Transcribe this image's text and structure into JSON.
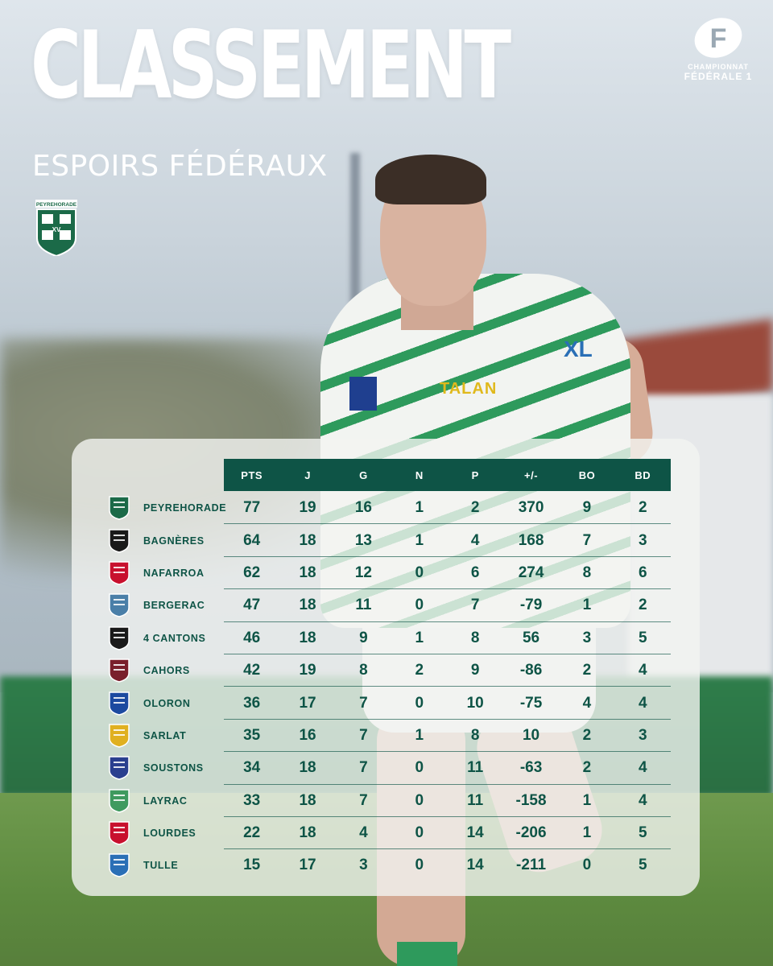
{
  "header": {
    "title": "CLASSEMENT",
    "subtitle": "ESPOIRS FÉDÉRAUX"
  },
  "club_badge": {
    "text": "PEYREHORADE",
    "sub": "XV",
    "color": "#1b6a48"
  },
  "league": {
    "letter": "F",
    "line1": "CHAMPIONNAT",
    "line2": "FÉDÉRALE 1"
  },
  "photo_sponsors": {
    "talan": "TALAN",
    "xl": "XL"
  },
  "colors": {
    "primary": "#0e5446",
    "card": "#f2f4f1",
    "text_light": "#ffffff"
  },
  "table": {
    "columns": [
      "PTS",
      "J",
      "G",
      "N",
      "P",
      "+/-",
      "BO",
      "BD"
    ],
    "rows": [
      {
        "team": "PEYREHORADE",
        "logo": "peyrehorade-shield-icon",
        "pts": "77",
        "j": "19",
        "g": "16",
        "n": "1",
        "p": "2",
        "diff": "370",
        "bo": "9",
        "bd": "2"
      },
      {
        "team": "BAGNÈRES",
        "logo": "bagneres-sb-icon",
        "pts": "64",
        "j": "18",
        "g": "13",
        "n": "1",
        "p": "4",
        "diff": "168",
        "bo": "7",
        "bd": "3"
      },
      {
        "team": "NAFARROA",
        "logo": "nafarroa-crest-icon",
        "pts": "62",
        "j": "18",
        "g": "12",
        "n": "0",
        "p": "6",
        "diff": "274",
        "bo": "8",
        "bd": "6"
      },
      {
        "team": "BERGERAC",
        "logo": "bergerac-shield-icon",
        "pts": "47",
        "j": "18",
        "g": "11",
        "n": "0",
        "p": "7",
        "diff": "-79",
        "bo": "1",
        "bd": "2"
      },
      {
        "team": "4 CANTONS",
        "logo": "usb-shield-icon",
        "pts": "46",
        "j": "18",
        "g": "9",
        "n": "1",
        "p": "8",
        "diff": "56",
        "bo": "3",
        "bd": "5"
      },
      {
        "team": "CAHORS",
        "logo": "cahors-shield-icon",
        "pts": "42",
        "j": "19",
        "g": "8",
        "n": "2",
        "p": "9",
        "diff": "-86",
        "bo": "2",
        "bd": "4"
      },
      {
        "team": "OLORON",
        "logo": "oloron-fco-icon",
        "pts": "36",
        "j": "17",
        "g": "7",
        "n": "0",
        "p": "10",
        "diff": "-75",
        "bo": "4",
        "bd": "4"
      },
      {
        "team": "SARLAT",
        "logo": "sarlat-shield-icon",
        "pts": "35",
        "j": "16",
        "g": "7",
        "n": "1",
        "p": "8",
        "diff": "10",
        "bo": "2",
        "bd": "3"
      },
      {
        "team": "SOUSTONS",
        "logo": "soustons-shield-icon",
        "pts": "34",
        "j": "18",
        "g": "7",
        "n": "0",
        "p": "11",
        "diff": "-63",
        "bo": "2",
        "bd": "4"
      },
      {
        "team": "LAYRAC",
        "logo": "layrac-shield-icon",
        "pts": "33",
        "j": "18",
        "g": "7",
        "n": "0",
        "p": "11",
        "diff": "-158",
        "bo": "1",
        "bd": "4"
      },
      {
        "team": "LOURDES",
        "logo": "lourdes-shield-icon",
        "pts": "22",
        "j": "18",
        "g": "4",
        "n": "0",
        "p": "14",
        "diff": "-206",
        "bo": "1",
        "bd": "5"
      },
      {
        "team": "TULLE",
        "logo": "tulle-shield-icon",
        "pts": "15",
        "j": "17",
        "g": "3",
        "n": "0",
        "p": "14",
        "diff": "-211",
        "bo": "0",
        "bd": "5"
      }
    ]
  }
}
